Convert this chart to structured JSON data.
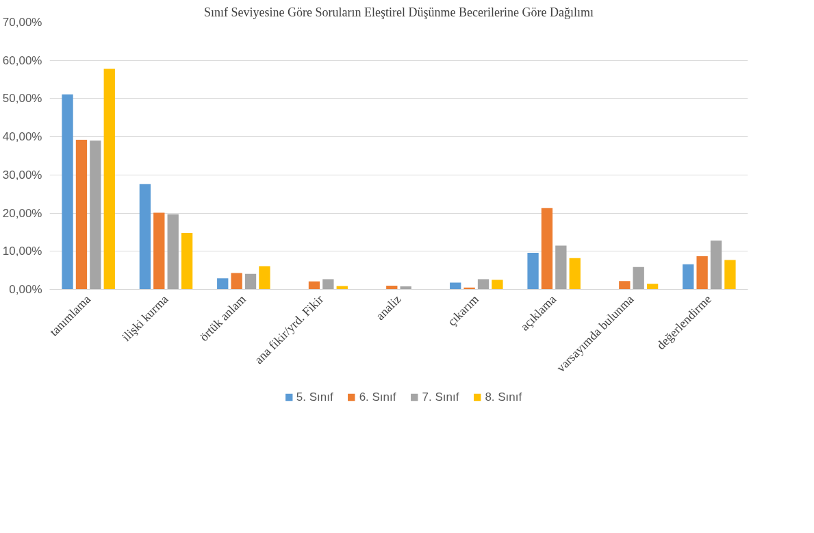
{
  "chart_data": {
    "type": "bar",
    "title": "Sınıf Seviyesine Göre Soruların Eleştirel Düşünme Becerilerine Göre Dağılımı",
    "categories": [
      "tanımlama",
      "ilişki kurma",
      "örtük anlam",
      "ana fikir/yrd. Fikir",
      "analiz",
      "çıkarım",
      "açıklama",
      "varsayımda bulunma",
      "değerlendirme"
    ],
    "series": [
      {
        "name": "5. Sınıf",
        "color": "#5b9bd5",
        "values": [
          51.1,
          27.6,
          2.9,
          0,
          0,
          1.8,
          9.6,
          0,
          6.6
        ]
      },
      {
        "name": "6. Sınıf",
        "color": "#ed7d31",
        "values": [
          39.2,
          20.1,
          4.3,
          2.1,
          1.0,
          0.5,
          21.3,
          2.2,
          8.7
        ]
      },
      {
        "name": "7. Sınıf",
        "color": "#a5a5a5",
        "values": [
          39.0,
          19.7,
          4.1,
          2.7,
          0.8,
          2.7,
          11.5,
          5.9,
          12.8
        ]
      },
      {
        "name": "8. Sınıf",
        "color": "#ffc000",
        "values": [
          57.8,
          14.8,
          6.1,
          0.9,
          0,
          2.5,
          8.2,
          1.5,
          7.7
        ]
      }
    ],
    "ylim": [
      0,
      70
    ],
    "yticks": [
      {
        "value": 0,
        "label": "0,00%"
      },
      {
        "value": 10,
        "label": "10,00%"
      },
      {
        "value": 20,
        "label": "20,00%"
      },
      {
        "value": 30,
        "label": "30,00%"
      },
      {
        "value": 40,
        "label": "40,00%"
      },
      {
        "value": 50,
        "label": "50,00%"
      },
      {
        "value": 60,
        "label": "60,00%"
      },
      {
        "value": 70,
        "label": "70,00%"
      }
    ],
    "grid": "y",
    "legend": "bottom"
  }
}
